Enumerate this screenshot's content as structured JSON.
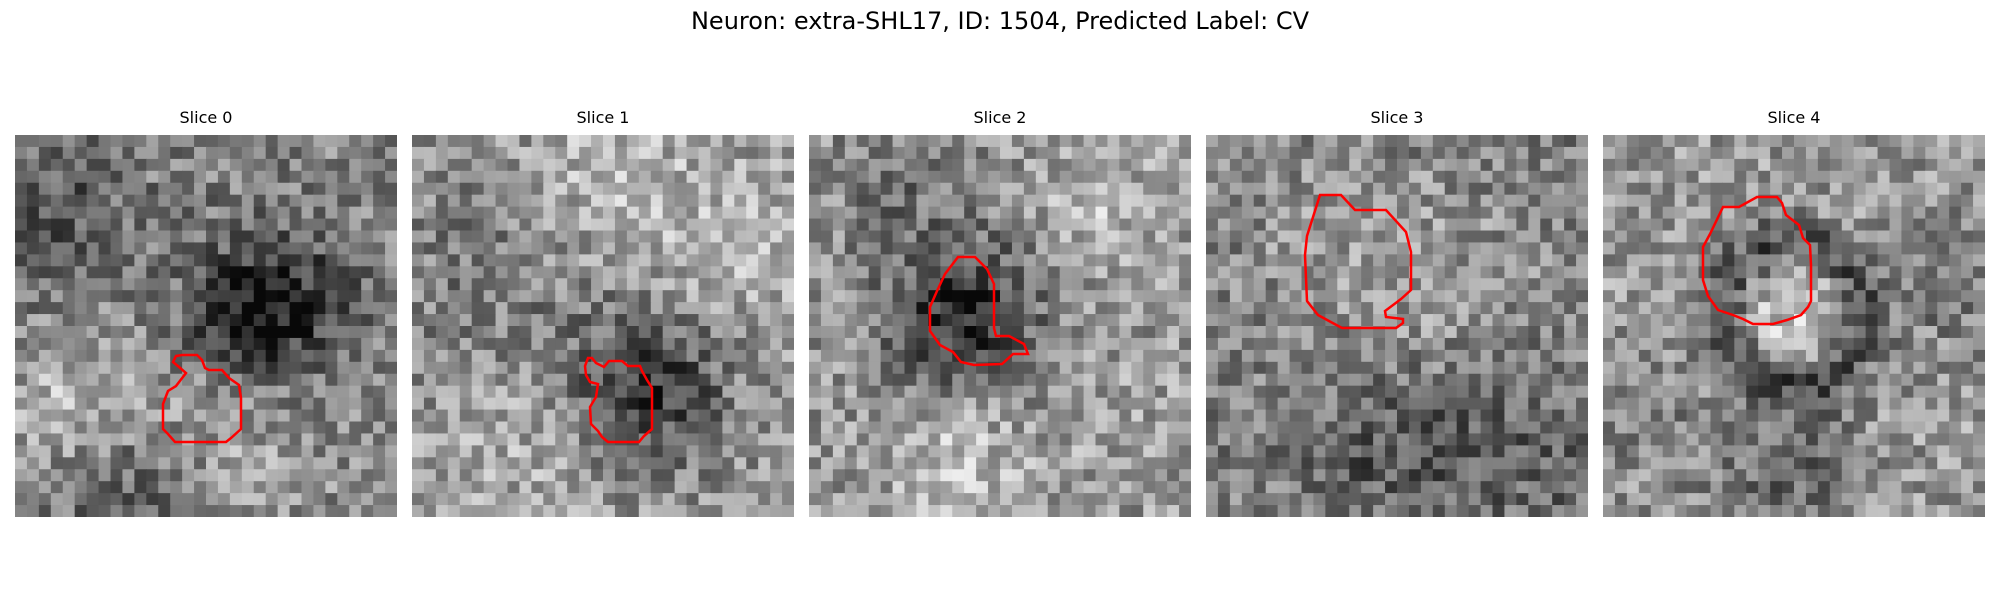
{
  "figure": {
    "title": "Neuron: extra-SHL17, ID: 1504, Predicted Label: CV"
  },
  "colors": {
    "background": "#ffffff",
    "contour": "#ff0000"
  },
  "panels": [
    {
      "title": "Slice 0"
    },
    {
      "title": "Slice 1"
    },
    {
      "title": "Slice 2"
    },
    {
      "title": "Slice 3"
    },
    {
      "title": "Slice 4"
    }
  ]
}
